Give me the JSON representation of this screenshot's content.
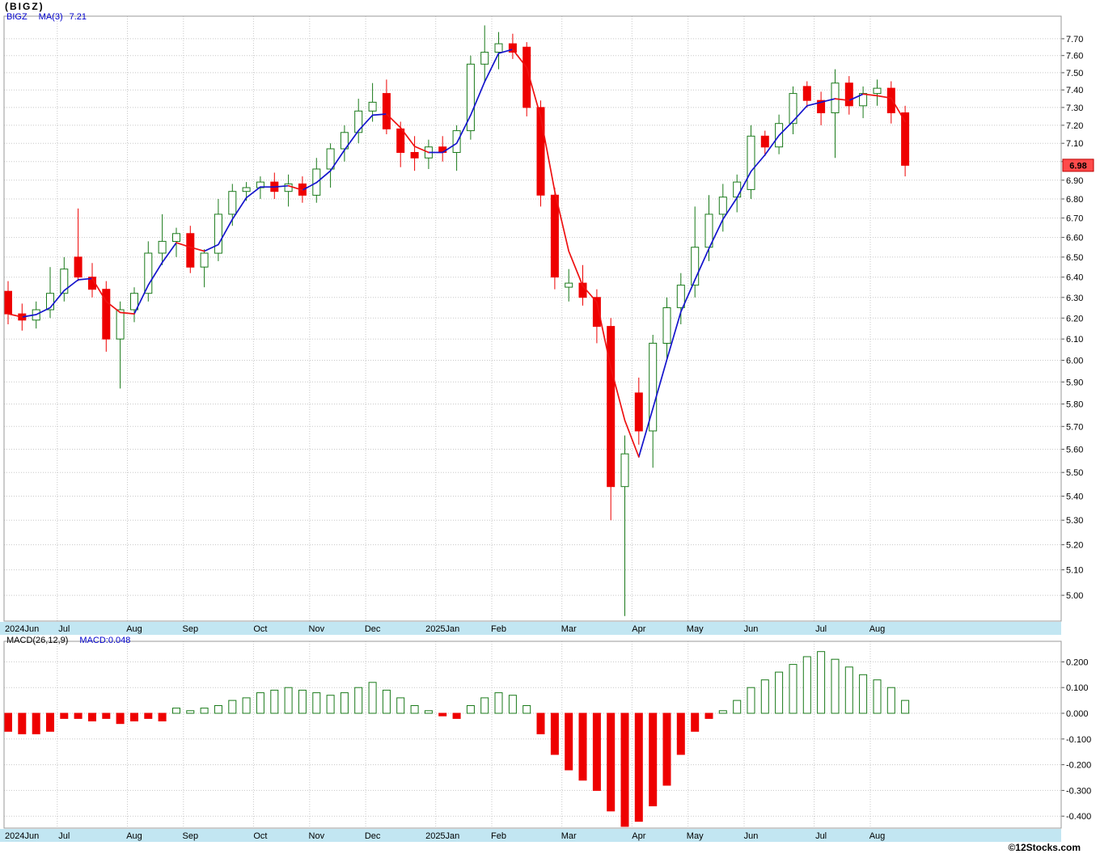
{
  "title": "(BIGZ)",
  "legend": {
    "symbol": "BIGZ",
    "ma_label": "MA(3)",
    "ma_value": "7.21"
  },
  "macd_legend": {
    "indicator": "MACD(26,12,9)",
    "value": "MACD:0.048"
  },
  "watermark": "©12Stocks.com",
  "price_badge": "6.98",
  "colors": {
    "up": "#1a7a1a",
    "down": "#ee0000",
    "ma_up": "#1414cc",
    "ma_down": "#ee1111",
    "band": "#c2e6f2",
    "grid": "#c8c8c8",
    "border": "#999999",
    "badge_bg": "#ff4b4b",
    "badge_border": "#bb0000",
    "legend_blue": "#0000cc",
    "axis_text": "#000000"
  },
  "chart_data": [
    {
      "type": "candlestick",
      "title": "BIGZ weekly price with MA(3)",
      "y_axis": {
        "min": 5.0,
        "max": 7.7,
        "step": 0.1,
        "scale": "log",
        "side": "right"
      },
      "overlays": [
        {
          "name": "MA(3)",
          "last_value": 7.21,
          "style": "direction-colored-blue-up-red-down"
        }
      ],
      "last_close": 6.98,
      "months": [
        {
          "label": "2024Jun",
          "index": 0
        },
        {
          "label": "Jul",
          "index": 4
        },
        {
          "label": "Aug",
          "index": 9
        },
        {
          "label": "Sep",
          "index": 13
        },
        {
          "label": "Oct",
          "index": 18
        },
        {
          "label": "Nov",
          "index": 22
        },
        {
          "label": "Dec",
          "index": 26
        },
        {
          "label": "2025Jan",
          "index": 31
        },
        {
          "label": "Feb",
          "index": 35
        },
        {
          "label": "Mar",
          "index": 40
        },
        {
          "label": "Apr",
          "index": 45
        },
        {
          "label": "May",
          "index": 49
        },
        {
          "label": "Jun",
          "index": 53
        },
        {
          "label": "Jul",
          "index": 58
        },
        {
          "label": "Aug",
          "index": 62
        }
      ],
      "ohlc": [
        [
          6.33,
          6.38,
          6.17,
          6.22
        ],
        [
          6.22,
          6.27,
          6.14,
          6.19
        ],
        [
          6.19,
          6.28,
          6.15,
          6.24
        ],
        [
          6.24,
          6.45,
          6.2,
          6.32
        ],
        [
          6.32,
          6.5,
          6.28,
          6.44
        ],
        [
          6.5,
          6.75,
          6.38,
          6.4
        ],
        [
          6.4,
          6.47,
          6.3,
          6.34
        ],
        [
          6.34,
          6.38,
          6.04,
          6.1
        ],
        [
          6.1,
          6.28,
          5.87,
          6.24
        ],
        [
          6.24,
          6.35,
          6.18,
          6.32
        ],
        [
          6.32,
          6.58,
          6.28,
          6.52
        ],
        [
          6.52,
          6.72,
          6.46,
          6.58
        ],
        [
          6.58,
          6.65,
          6.5,
          6.62
        ],
        [
          6.62,
          6.66,
          6.42,
          6.45
        ],
        [
          6.45,
          6.54,
          6.35,
          6.52
        ],
        [
          6.52,
          6.8,
          6.48,
          6.72
        ],
        [
          6.72,
          6.88,
          6.66,
          6.84
        ],
        [
          6.84,
          6.89,
          6.79,
          6.86
        ],
        [
          6.86,
          6.92,
          6.8,
          6.89
        ],
        [
          6.89,
          6.94,
          6.8,
          6.84
        ],
        [
          6.84,
          6.93,
          6.76,
          6.88
        ],
        [
          6.88,
          6.92,
          6.78,
          6.82
        ],
        [
          6.82,
          7.02,
          6.78,
          6.96
        ],
        [
          6.96,
          7.1,
          6.86,
          7.07
        ],
        [
          7.07,
          7.2,
          7.0,
          7.16
        ],
        [
          7.16,
          7.35,
          7.1,
          7.28
        ],
        [
          7.28,
          7.44,
          7.22,
          7.33
        ],
        [
          7.38,
          7.46,
          7.15,
          7.18
        ],
        [
          7.18,
          7.22,
          6.97,
          7.05
        ],
        [
          7.05,
          7.14,
          6.95,
          7.02
        ],
        [
          7.02,
          7.12,
          6.96,
          7.08
        ],
        [
          7.08,
          7.14,
          7.0,
          7.05
        ],
        [
          7.05,
          7.2,
          6.95,
          7.17
        ],
        [
          7.17,
          7.6,
          7.12,
          7.55
        ],
        [
          7.55,
          7.78,
          7.45,
          7.62
        ],
        [
          7.62,
          7.74,
          7.52,
          7.67
        ],
        [
          7.67,
          7.73,
          7.58,
          7.62
        ],
        [
          7.65,
          7.68,
          7.25,
          7.3
        ],
        [
          7.3,
          7.34,
          6.76,
          6.82
        ],
        [
          6.82,
          6.86,
          6.34,
          6.4
        ],
        [
          6.35,
          6.44,
          6.28,
          6.37
        ],
        [
          6.37,
          6.46,
          6.26,
          6.3
        ],
        [
          6.3,
          6.34,
          6.08,
          6.16
        ],
        [
          6.16,
          6.2,
          5.3,
          5.44
        ],
        [
          5.44,
          5.66,
          4.92,
          5.58
        ],
        [
          5.85,
          5.92,
          5.62,
          5.68
        ],
        [
          5.68,
          6.12,
          5.52,
          6.08
        ],
        [
          6.08,
          6.3,
          6.0,
          6.25
        ],
        [
          6.25,
          6.42,
          6.17,
          6.36
        ],
        [
          6.36,
          6.76,
          6.3,
          6.55
        ],
        [
          6.55,
          6.82,
          6.48,
          6.72
        ],
        [
          6.72,
          6.88,
          6.63,
          6.81
        ],
        [
          6.81,
          6.93,
          6.73,
          6.89
        ],
        [
          6.85,
          7.2,
          6.8,
          7.14
        ],
        [
          7.14,
          7.17,
          7.03,
          7.08
        ],
        [
          7.08,
          7.26,
          7.04,
          7.21
        ],
        [
          7.21,
          7.42,
          7.15,
          7.38
        ],
        [
          7.42,
          7.45,
          7.3,
          7.34
        ],
        [
          7.34,
          7.39,
          7.2,
          7.27
        ],
        [
          7.27,
          7.52,
          7.02,
          7.44
        ],
        [
          7.44,
          7.48,
          7.26,
          7.31
        ],
        [
          7.31,
          7.42,
          7.24,
          7.38
        ],
        [
          7.38,
          7.46,
          7.31,
          7.41
        ],
        [
          7.41,
          7.45,
          7.21,
          7.27
        ],
        [
          7.27,
          7.31,
          6.92,
          6.98
        ]
      ]
    },
    {
      "type": "bar",
      "title": "MACD(26,12,9) histogram",
      "y_axis": {
        "min": -0.4,
        "max": 0.2,
        "step": 0.1,
        "side": "right"
      },
      "last_value": 0.048,
      "values": [
        -0.07,
        -0.08,
        -0.08,
        -0.07,
        -0.02,
        -0.02,
        -0.03,
        -0.02,
        -0.04,
        -0.03,
        -0.02,
        -0.03,
        0.02,
        0.01,
        0.02,
        0.03,
        0.05,
        0.06,
        0.08,
        0.09,
        0.1,
        0.09,
        0.08,
        0.07,
        0.08,
        0.1,
        0.12,
        0.09,
        0.06,
        0.03,
        0.01,
        -0.01,
        -0.02,
        0.03,
        0.06,
        0.08,
        0.07,
        0.03,
        -0.08,
        -0.16,
        -0.22,
        -0.26,
        -0.3,
        -0.38,
        -0.44,
        -0.42,
        -0.36,
        -0.28,
        -0.16,
        -0.07,
        -0.02,
        0.01,
        0.05,
        0.1,
        0.13,
        0.16,
        0.19,
        0.22,
        0.24,
        0.21,
        0.18,
        0.15,
        0.13,
        0.1,
        0.05
      ]
    }
  ]
}
